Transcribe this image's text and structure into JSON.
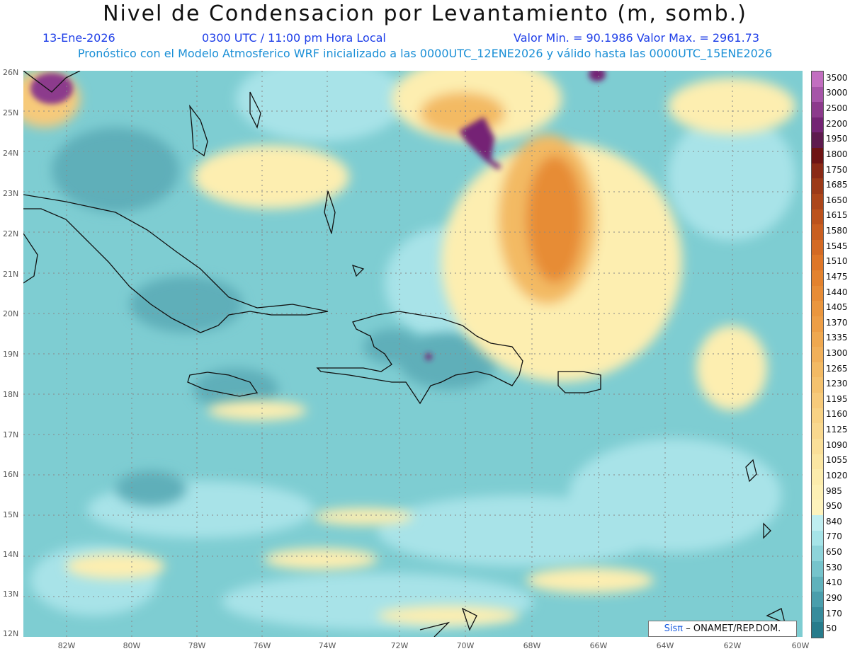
{
  "title": "Nivel de Condensacion por Levantamiento (m, somb.)",
  "subtitle": {
    "date": "13-Ene-2026",
    "time": "0300 UTC / 11:00 pm Hora Local",
    "value_range": "Valor Min. = 90.1986  Valor Max. = 2961.73",
    "model_info": "Pronóstico con el Modelo Atmosferico WRF inicializado a las 0000UTC_12ENE2026 y válido hasta las  0000UTC_15ENE2026"
  },
  "latitude_labels": [
    "26N",
    "25N",
    "24N",
    "23N",
    "22N",
    "21N",
    "20N",
    "19N",
    "18N",
    "17N",
    "16N",
    "15N",
    "14N",
    "13N",
    "12N"
  ],
  "longitude_labels": [
    "82W",
    "80W",
    "78W",
    "76W",
    "74W",
    "72W",
    "70W",
    "68W",
    "66W",
    "64W",
    "62W",
    "60W"
  ],
  "colorbar": {
    "labels": [
      "3500",
      "3000",
      "2500",
      "2200",
      "1950",
      "1800",
      "1750",
      "1685",
      "1650",
      "1615",
      "1580",
      "1545",
      "1510",
      "1475",
      "1440",
      "1405",
      "1370",
      "1335",
      "1300",
      "1265",
      "1230",
      "1195",
      "1160",
      "1125",
      "1090",
      "1055",
      "1020",
      "985",
      "950",
      "840",
      "770",
      "650",
      "530",
      "410",
      "290",
      "170",
      "50"
    ],
    "colors": [
      "#c26ec0",
      "#a654a8",
      "#8c3a8c",
      "#742474",
      "#5e1a4e",
      "#6e1414",
      "#8a2a16",
      "#9c3a18",
      "#ac461a",
      "#bc521c",
      "#c95e20",
      "#d46a24",
      "#de7628",
      "#e3822e",
      "#e78c36",
      "#ea963e",
      "#ed9e46",
      "#efa850",
      "#f1b05a",
      "#f3ba64",
      "#f5c26e",
      "#f7ca7a",
      "#f8d284",
      "#f9d88e",
      "#fadf98",
      "#fbe6a2",
      "#fcecac",
      "#fdf0b4",
      "#fef3bc",
      "#bfeef0",
      "#a6e4e8",
      "#8dd4da",
      "#76c4cc",
      "#5fb2bc",
      "#4a9eac",
      "#378c9c",
      "#277c8c"
    ]
  },
  "credit": {
    "logo": "Sisπ",
    "text": "– ONAMET/REP.DOM."
  }
}
